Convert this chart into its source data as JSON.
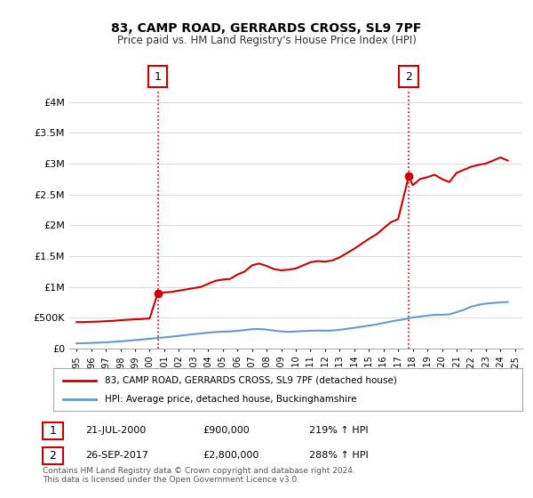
{
  "title": "83, CAMP ROAD, GERRARDS CROSS, SL9 7PF",
  "subtitle": "Price paid vs. HM Land Registry's House Price Index (HPI)",
  "background_color": "#ffffff",
  "plot_bg_color": "#ffffff",
  "grid_color": "#dddddd",
  "red_line_color": "#cc0000",
  "blue_line_color": "#6699cc",
  "marker1_date_x": 2000.55,
  "marker1_y": 900000,
  "marker2_date_x": 2017.73,
  "marker2_y": 2800000,
  "marker1_label": "1",
  "marker2_label": "2",
  "vline_color": "#cc0000",
  "vline_style": ":",
  "ylim": [
    0,
    4200000
  ],
  "yticks": [
    0,
    500000,
    1000000,
    1500000,
    2000000,
    2500000,
    3000000,
    3500000,
    4000000
  ],
  "ytick_labels": [
    "£0",
    "£500K",
    "£1M",
    "£1.5M",
    "£2M",
    "£2.5M",
    "£3M",
    "£3.5M",
    "£4M"
  ],
  "xlim_start": 1994.5,
  "xlim_end": 2025.5,
  "xticks": [
    1995,
    1996,
    1997,
    1998,
    1999,
    2000,
    2001,
    2002,
    2003,
    2004,
    2005,
    2006,
    2007,
    2008,
    2009,
    2010,
    2011,
    2012,
    2013,
    2014,
    2015,
    2016,
    2017,
    2018,
    2019,
    2020,
    2021,
    2022,
    2023,
    2024,
    2025
  ],
  "legend_line1": "83, CAMP ROAD, GERRARDS CROSS, SL9 7PF (detached house)",
  "legend_line2": "HPI: Average price, detached house, Buckinghamshire",
  "annotation1_date": "21-JUL-2000",
  "annotation1_price": "£900,000",
  "annotation1_hpi": "219% ↑ HPI",
  "annotation2_date": "26-SEP-2017",
  "annotation2_price": "£2,800,000",
  "annotation2_hpi": "288% ↑ HPI",
  "footer": "Contains HM Land Registry data © Crown copyright and database right 2024.\nThis data is licensed under the Open Government Licence v3.0.",
  "red_x": [
    1995.0,
    1995.5,
    1996.0,
    1996.5,
    1997.0,
    1997.5,
    1998.0,
    1998.5,
    1999.0,
    1999.5,
    2000.0,
    2000.55,
    2001.0,
    2001.5,
    2002.0,
    2002.5,
    2003.0,
    2003.5,
    2004.0,
    2004.5,
    2005.0,
    2005.5,
    2006.0,
    2006.5,
    2007.0,
    2007.5,
    2008.0,
    2008.5,
    2009.0,
    2009.5,
    2010.0,
    2010.5,
    2011.0,
    2011.5,
    2012.0,
    2012.5,
    2013.0,
    2013.5,
    2014.0,
    2014.5,
    2015.0,
    2015.5,
    2016.0,
    2016.5,
    2017.0,
    2017.73,
    2018.0,
    2018.5,
    2019.0,
    2019.5,
    2020.0,
    2020.5,
    2021.0,
    2021.5,
    2022.0,
    2022.5,
    2023.0,
    2023.5,
    2024.0,
    2024.5
  ],
  "red_y": [
    430000,
    430000,
    435000,
    438000,
    445000,
    450000,
    460000,
    468000,
    475000,
    480000,
    490000,
    900000,
    910000,
    920000,
    940000,
    960000,
    980000,
    1000000,
    1050000,
    1100000,
    1120000,
    1130000,
    1200000,
    1250000,
    1350000,
    1380000,
    1340000,
    1290000,
    1270000,
    1280000,
    1300000,
    1350000,
    1400000,
    1420000,
    1410000,
    1430000,
    1480000,
    1550000,
    1620000,
    1700000,
    1780000,
    1850000,
    1950000,
    2050000,
    2100000,
    2800000,
    2650000,
    2750000,
    2780000,
    2820000,
    2750000,
    2700000,
    2850000,
    2900000,
    2950000,
    2980000,
    3000000,
    3050000,
    3100000,
    3050000
  ],
  "blue_x": [
    1995.0,
    1995.5,
    1996.0,
    1996.5,
    1997.0,
    1997.5,
    1998.0,
    1998.5,
    1999.0,
    1999.5,
    2000.0,
    2000.5,
    2001.0,
    2001.5,
    2002.0,
    2002.5,
    2003.0,
    2003.5,
    2004.0,
    2004.5,
    2005.0,
    2005.5,
    2006.0,
    2006.5,
    2007.0,
    2007.5,
    2008.0,
    2008.5,
    2009.0,
    2009.5,
    2010.0,
    2010.5,
    2011.0,
    2011.5,
    2012.0,
    2012.5,
    2013.0,
    2013.5,
    2014.0,
    2014.5,
    2015.0,
    2015.5,
    2016.0,
    2016.5,
    2017.0,
    2017.5,
    2018.0,
    2018.5,
    2019.0,
    2019.5,
    2020.0,
    2020.5,
    2021.0,
    2021.5,
    2022.0,
    2022.5,
    2023.0,
    2023.5,
    2024.0,
    2024.5
  ],
  "blue_y": [
    85000,
    87000,
    92000,
    97000,
    102000,
    110000,
    118000,
    127000,
    138000,
    148000,
    160000,
    172000,
    182000,
    193000,
    207000,
    221000,
    234000,
    245000,
    258000,
    268000,
    275000,
    278000,
    288000,
    300000,
    315000,
    318000,
    308000,
    293000,
    278000,
    272000,
    278000,
    283000,
    290000,
    293000,
    290000,
    293000,
    305000,
    320000,
    338000,
    355000,
    373000,
    390000,
    415000,
    440000,
    460000,
    480000,
    505000,
    520000,
    535000,
    548000,
    548000,
    555000,
    590000,
    630000,
    680000,
    710000,
    730000,
    740000,
    750000,
    755000
  ]
}
